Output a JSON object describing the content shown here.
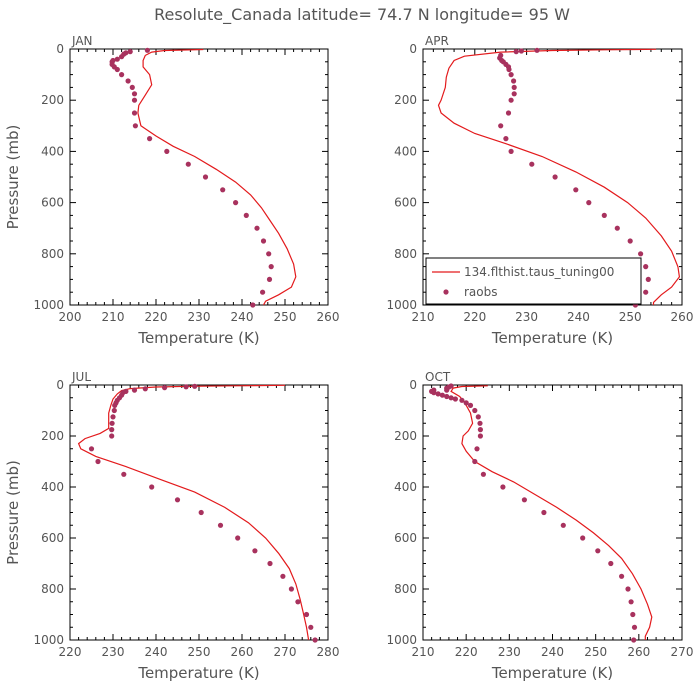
{
  "figure": {
    "title": "Resolute_Canada  latitude= 74.7 N longitude= 95 W"
  },
  "legend": {
    "line_label": "134.flthist.taus_tuning00",
    "dots_label": "raobs",
    "panel": 1
  },
  "colors": {
    "model_line": "#e31a1c",
    "obs_dots": "#a8325e",
    "axes": "#000000",
    "text": "#555555"
  },
  "chart_data": [
    {
      "type": "line",
      "panel_label": "JAN",
      "xlabel": "Temperature (K)",
      "ylabel": "Pressure (mb)",
      "xlim": [
        200,
        260
      ],
      "ylim": [
        1000,
        0
      ],
      "xticks": [
        200,
        210,
        220,
        230,
        240,
        250,
        260
      ],
      "yticks": [
        0,
        200,
        400,
        600,
        800,
        1000
      ],
      "series": [
        {
          "name": "134.flthist.taus_tuning00",
          "kind": "line",
          "points": [
            [
              231,
              2
            ],
            [
              222,
              6
            ],
            [
              219,
              12
            ],
            [
              217.5,
              25
            ],
            [
              217,
              45
            ],
            [
              217,
              70
            ],
            [
              218.5,
              100
            ],
            [
              219,
              140
            ],
            [
              217.5,
              180
            ],
            [
              216,
              220
            ],
            [
              215.8,
              250
            ],
            [
              216.5,
              300
            ],
            [
              220,
              340
            ],
            [
              224,
              380
            ],
            [
              229,
              420
            ],
            [
              234,
              470
            ],
            [
              238.5,
              520
            ],
            [
              242,
              570
            ],
            [
              244.5,
              620
            ],
            [
              246.5,
              670
            ],
            [
              248.5,
              720
            ],
            [
              250.5,
              780
            ],
            [
              252,
              840
            ],
            [
              252.5,
              890
            ],
            [
              251.5,
              930
            ],
            [
              248.5,
              960
            ],
            [
              245.5,
              985
            ],
            [
              245,
              1000
            ]
          ]
        },
        {
          "name": "raobs",
          "kind": "scatter",
          "points": [
            [
              218,
              5
            ],
            [
              214,
              10
            ],
            [
              213,
              15
            ],
            [
              212.5,
              20
            ],
            [
              212,
              30
            ],
            [
              211,
              40
            ],
            [
              210,
              45
            ],
            [
              209.8,
              50
            ],
            [
              209.8,
              60
            ],
            [
              210.3,
              70
            ],
            [
              211,
              80
            ],
            [
              212,
              100
            ],
            [
              213.5,
              125
            ],
            [
              214.5,
              150
            ],
            [
              215,
              175
            ],
            [
              215,
              200
            ],
            [
              215,
              250
            ],
            [
              215.2,
              300
            ],
            [
              218.5,
              350
            ],
            [
              222.5,
              400
            ],
            [
              227.5,
              450
            ],
            [
              231.5,
              500
            ],
            [
              235.5,
              550
            ],
            [
              238.5,
              600
            ],
            [
              241,
              650
            ],
            [
              243.5,
              700
            ],
            [
              245,
              750
            ],
            [
              246.2,
              800
            ],
            [
              246.8,
              850
            ],
            [
              246.4,
              900
            ],
            [
              244.8,
              950
            ],
            [
              242.5,
              1000
            ]
          ]
        }
      ]
    },
    {
      "type": "line",
      "panel_label": "APR",
      "xlabel": "Temperature (K)",
      "ylabel": "",
      "xlim": [
        210,
        260
      ],
      "ylim": [
        1000,
        0
      ],
      "xticks": [
        210,
        220,
        230,
        240,
        250,
        260
      ],
      "yticks": [
        0,
        200,
        400,
        600,
        800,
        1000
      ],
      "series": [
        {
          "name": "134.flthist.taus_tuning00",
          "kind": "line",
          "points": [
            [
              255,
              1
            ],
            [
              245,
              3
            ],
            [
              235,
              6
            ],
            [
              225,
              12
            ],
            [
              218,
              28
            ],
            [
              216,
              45
            ],
            [
              215,
              75
            ],
            [
              214.5,
              110
            ],
            [
              214.3,
              150
            ],
            [
              213.5,
              200
            ],
            [
              213,
              220
            ],
            [
              213.5,
              250
            ],
            [
              216,
              290
            ],
            [
              220,
              330
            ],
            [
              226,
              370
            ],
            [
              233,
              420
            ],
            [
              239.5,
              480
            ],
            [
              245,
              540
            ],
            [
              249.5,
              600
            ],
            [
              253,
              660
            ],
            [
              256,
              730
            ],
            [
              258,
              790
            ],
            [
              259.2,
              850
            ],
            [
              259.5,
              890
            ],
            [
              258,
              930
            ],
            [
              256,
              960
            ],
            [
              254.5,
              990
            ],
            [
              254.5,
              1000
            ]
          ]
        },
        {
          "name": "raobs",
          "kind": "scatter",
          "points": [
            [
              232,
              5
            ],
            [
              229,
              8
            ],
            [
              228,
              10
            ],
            [
              225,
              25
            ],
            [
              224.8,
              35
            ],
            [
              225.2,
              45
            ],
            [
              225.5,
              50
            ],
            [
              226,
              60
            ],
            [
              226.5,
              70
            ],
            [
              226.6,
              80
            ],
            [
              227,
              100
            ],
            [
              227.5,
              125
            ],
            [
              227.6,
              150
            ],
            [
              227.6,
              175
            ],
            [
              227,
              200
            ],
            [
              226.5,
              250
            ],
            [
              225,
              300
            ],
            [
              226,
              350
            ],
            [
              227,
              400
            ],
            [
              231,
              450
            ],
            [
              235.5,
              500
            ],
            [
              239.5,
              550
            ],
            [
              242,
              600
            ],
            [
              245,
              650
            ],
            [
              247.5,
              700
            ],
            [
              250,
              750
            ],
            [
              252,
              800
            ],
            [
              253,
              850
            ],
            [
              253.5,
              900
            ],
            [
              253,
              950
            ],
            [
              251,
              1000
            ]
          ]
        }
      ]
    },
    {
      "type": "line",
      "panel_label": "JUL",
      "xlabel": "Temperature (K)",
      "ylabel": "Pressure (mb)",
      "xlim": [
        220,
        280
      ],
      "ylim": [
        1000,
        0
      ],
      "xticks": [
        220,
        230,
        240,
        250,
        260,
        270,
        280
      ],
      "yticks": [
        0,
        200,
        400,
        600,
        800,
        1000
      ],
      "series": [
        {
          "name": "134.flthist.taus_tuning00",
          "kind": "line",
          "points": [
            [
              270,
              1
            ],
            [
              258,
              3
            ],
            [
              248,
              5
            ],
            [
              240,
              8
            ],
            [
              234,
              14
            ],
            [
              232,
              22
            ],
            [
              231,
              35
            ],
            [
              230,
              55
            ],
            [
              229.5,
              80
            ],
            [
              229,
              110
            ],
            [
              229,
              140
            ],
            [
              229,
              170
            ],
            [
              227,
              190
            ],
            [
              223.5,
              210
            ],
            [
              222,
              230
            ],
            [
              222.5,
              250
            ],
            [
              226,
              280
            ],
            [
              233,
              320
            ],
            [
              241,
              370
            ],
            [
              249,
              420
            ],
            [
              256,
              480
            ],
            [
              261.5,
              540
            ],
            [
              265.5,
              600
            ],
            [
              268.5,
              660
            ],
            [
              271,
              720
            ],
            [
              272.5,
              780
            ],
            [
              273.5,
              840
            ],
            [
              274.2,
              890
            ],
            [
              275,
              950
            ],
            [
              275.5,
              1000
            ]
          ]
        },
        {
          "name": "raobs",
          "kind": "scatter",
          "points": [
            [
              249,
              5
            ],
            [
              247,
              7
            ],
            [
              242,
              10
            ],
            [
              237.5,
              15
            ],
            [
              235,
              20
            ],
            [
              233,
              25
            ],
            [
              232.3,
              30
            ],
            [
              232,
              40
            ],
            [
              231.5,
              50
            ],
            [
              231,
              60
            ],
            [
              230.7,
              70
            ],
            [
              230.4,
              80
            ],
            [
              230.3,
              100
            ],
            [
              230,
              125
            ],
            [
              229.8,
              150
            ],
            [
              229.7,
              175
            ],
            [
              229.7,
              200
            ],
            [
              225,
              250
            ],
            [
              226.5,
              300
            ],
            [
              232.5,
              350
            ],
            [
              239,
              400
            ],
            [
              245,
              450
            ],
            [
              250.5,
              500
            ],
            [
              255,
              550
            ],
            [
              259,
              600
            ],
            [
              263,
              650
            ],
            [
              266.5,
              700
            ],
            [
              269.5,
              750
            ],
            [
              271.5,
              800
            ],
            [
              273,
              850
            ],
            [
              275,
              900
            ],
            [
              276,
              950
            ],
            [
              277,
              1000
            ]
          ]
        }
      ]
    },
    {
      "type": "line",
      "panel_label": "OCT",
      "xlabel": "Temperature (K)",
      "ylabel": "",
      "xlim": [
        210,
        270
      ],
      "ylim": [
        1000,
        0
      ],
      "xticks": [
        210,
        220,
        230,
        240,
        250,
        260,
        270
      ],
      "yticks": [
        0,
        200,
        400,
        600,
        800,
        1000
      ],
      "series": [
        {
          "name": "134.flthist.taus_tuning00",
          "kind": "line",
          "points": [
            [
              225,
              3
            ],
            [
              219,
              6
            ],
            [
              217,
              12
            ],
            [
              216.5,
              25
            ],
            [
              218.5,
              45
            ],
            [
              219.7,
              70
            ],
            [
              221,
              110
            ],
            [
              221.5,
              150
            ],
            [
              220.5,
              180
            ],
            [
              219.3,
              200
            ],
            [
              219,
              230
            ],
            [
              220,
              260
            ],
            [
              222,
              300
            ],
            [
              226,
              340
            ],
            [
              231,
              380
            ],
            [
              236,
              430
            ],
            [
              241,
              480
            ],
            [
              245.5,
              530
            ],
            [
              249.5,
              580
            ],
            [
              253,
              630
            ],
            [
              256,
              680
            ],
            [
              258.5,
              740
            ],
            [
              260.5,
              800
            ],
            [
              262,
              860
            ],
            [
              263,
              910
            ],
            [
              262.5,
              950
            ],
            [
              261.5,
              985
            ],
            [
              261.5,
              1000
            ]
          ]
        },
        {
          "name": "raobs",
          "kind": "scatter",
          "points": [
            [
              216.5,
              4
            ],
            [
              216,
              8
            ],
            [
              215.5,
              12
            ],
            [
              215.5,
              20
            ],
            [
              212.5,
              20
            ],
            [
              212,
              25
            ],
            [
              212.5,
              30
            ],
            [
              213.5,
              35
            ],
            [
              214.5,
              40
            ],
            [
              215.5,
              45
            ],
            [
              216.5,
              50
            ],
            [
              217.5,
              55
            ],
            [
              219,
              60
            ],
            [
              220,
              70
            ],
            [
              221,
              80
            ],
            [
              222,
              100
            ],
            [
              222.8,
              125
            ],
            [
              223.2,
              150
            ],
            [
              223.3,
              175
            ],
            [
              223.3,
              200
            ],
            [
              222.5,
              250
            ],
            [
              222,
              300
            ],
            [
              224,
              350
            ],
            [
              228.5,
              400
            ],
            [
              233.5,
              450
            ],
            [
              238,
              500
            ],
            [
              242.5,
              550
            ],
            [
              247,
              600
            ],
            [
              250.5,
              650
            ],
            [
              253.5,
              700
            ],
            [
              256,
              750
            ],
            [
              257.5,
              800
            ],
            [
              258.2,
              850
            ],
            [
              258.6,
              900
            ],
            [
              259,
              950
            ],
            [
              258.8,
              1000
            ]
          ]
        }
      ]
    }
  ]
}
